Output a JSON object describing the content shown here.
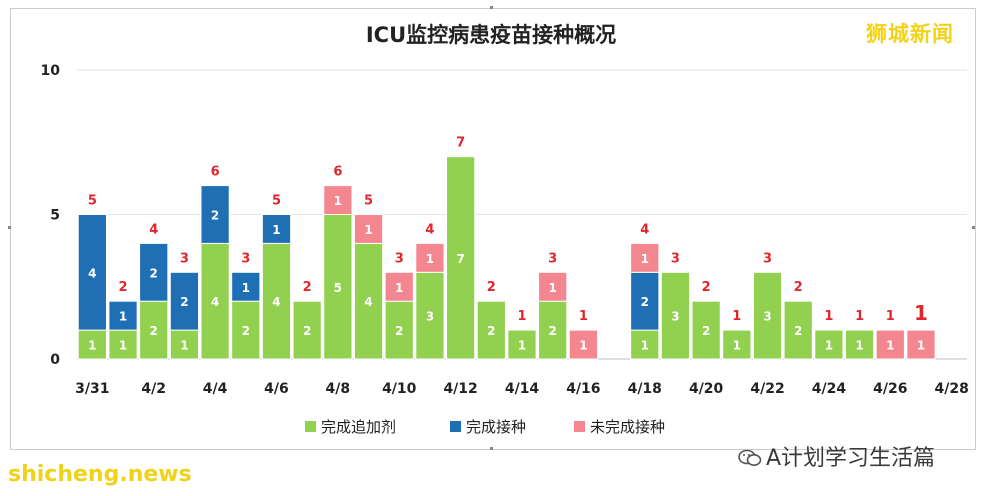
{
  "brand": "狮城新闻",
  "watermark": "shicheng.news",
  "wechat_account": "A计划学习生活篇",
  "chart_data": {
    "type": "bar",
    "stacked": true,
    "title": "ICU监控病患疫苗接种概况",
    "ylim": [
      0,
      10
    ],
    "yticks": [
      "0",
      "5",
      "10"
    ],
    "xtick_labels": [
      "3/31",
      "4/2",
      "4/4",
      "4/6",
      "4/8",
      "4/10",
      "4/12",
      "4/14",
      "4/16",
      "4/18",
      "4/20",
      "4/22",
      "4/24",
      "4/26",
      "4/28"
    ],
    "dates": [
      "3/31",
      "4/1",
      "4/2",
      "4/3",
      "4/4",
      "4/5",
      "4/6",
      "4/7",
      "4/8",
      "4/9",
      "4/10",
      "4/11",
      "4/12",
      "4/13",
      "4/14",
      "4/15",
      "4/16",
      "4/17",
      "4/18",
      "4/19",
      "4/20",
      "4/21",
      "4/22",
      "4/23",
      "4/24",
      "4/25",
      "4/26",
      "4/27",
      "4/28"
    ],
    "series": [
      {
        "name": "完成追加剂",
        "color": "#92d050",
        "values": [
          1,
          1,
          2,
          1,
          4,
          2,
          4,
          2,
          5,
          4,
          2,
          3,
          7,
          2,
          1,
          2,
          0,
          0,
          1,
          3,
          2,
          1,
          3,
          2,
          1,
          1,
          0,
          0,
          0
        ]
      },
      {
        "name": "完成接种",
        "color": "#1f6fb5",
        "values": [
          4,
          1,
          2,
          2,
          2,
          1,
          1,
          0,
          0,
          0,
          0,
          0,
          0,
          0,
          0,
          0,
          0,
          0,
          2,
          0,
          0,
          0,
          0,
          0,
          0,
          0,
          0,
          0,
          0
        ]
      },
      {
        "name": "未完成接种",
        "color": "#f4868f",
        "values": [
          0,
          0,
          0,
          0,
          0,
          0,
          0,
          0,
          1,
          1,
          1,
          1,
          0,
          0,
          0,
          1,
          1,
          0,
          1,
          0,
          0,
          0,
          0,
          0,
          0,
          0,
          1,
          1,
          0
        ]
      }
    ],
    "totals": [
      5,
      2,
      4,
      3,
      6,
      3,
      5,
      2,
      6,
      5,
      3,
      4,
      7,
      2,
      1,
      3,
      1,
      0,
      4,
      3,
      2,
      1,
      3,
      2,
      1,
      1,
      1,
      1,
      0
    ],
    "total_color": "#e0262c",
    "legend_position": "bottom",
    "grid": true
  }
}
